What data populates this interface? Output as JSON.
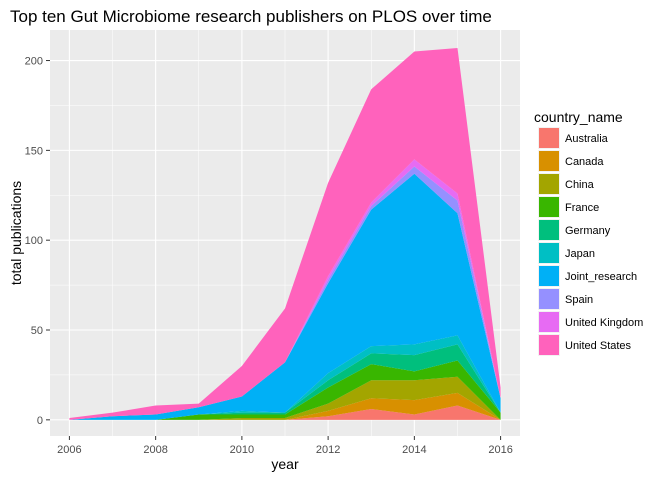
{
  "chart_data": {
    "type": "area",
    "stacked": true,
    "title": "Top ten Gut Microbiome research publishers on PLOS over time",
    "xlabel": "year",
    "ylabel": "total publications",
    "xlim": [
      2005.55,
      2016.45
    ],
    "ylim": [
      -9,
      217
    ],
    "xticks": [
      2006,
      2008,
      2010,
      2012,
      2014,
      2016
    ],
    "yticks": [
      0,
      50,
      100,
      150,
      200
    ],
    "grid": true,
    "legend_title": "country_name",
    "legend_position": "right",
    "x": [
      2006,
      2007,
      2008,
      2009,
      2010,
      2011,
      2012,
      2013,
      2014,
      2015,
      2016
    ],
    "series": [
      {
        "name": "Australia",
        "color": "#F8766D",
        "values": [
          0,
          0,
          0,
          0,
          0,
          0,
          2,
          6,
          3,
          8,
          0
        ]
      },
      {
        "name": "Canada",
        "color": "#D89000",
        "values": [
          0,
          0,
          0,
          0,
          0,
          0,
          3,
          6,
          8,
          7,
          0
        ]
      },
      {
        "name": "China",
        "color": "#A3A500",
        "values": [
          0,
          0,
          0,
          0,
          1,
          1,
          4,
          10,
          11,
          9,
          0
        ]
      },
      {
        "name": "France",
        "color": "#39B600",
        "values": [
          0,
          0,
          0,
          3,
          2,
          2,
          9,
          9,
          5,
          9,
          4
        ]
      },
      {
        "name": "Germany",
        "color": "#00BF7D",
        "values": [
          0,
          0,
          0,
          0,
          1,
          1,
          4,
          6,
          9,
          9,
          0
        ]
      },
      {
        "name": "Japan",
        "color": "#00BFC4",
        "values": [
          0,
          0,
          0,
          0,
          1,
          0,
          4,
          4,
          6,
          5,
          0
        ]
      },
      {
        "name": "Joint_research",
        "color": "#00B0F6",
        "values": [
          0,
          2,
          3,
          4,
          8,
          28,
          50,
          76,
          95,
          68,
          8
        ]
      },
      {
        "name": "Spain",
        "color": "#9590FF",
        "values": [
          0,
          0,
          0,
          0,
          0,
          0,
          2,
          2,
          4,
          7,
          0
        ]
      },
      {
        "name": "United Kingdom",
        "color": "#E76BF3",
        "values": [
          0,
          0,
          0,
          0,
          0,
          0,
          2,
          2,
          4,
          4,
          0
        ]
      },
      {
        "name": "United States",
        "color": "#FF62BC",
        "values": [
          1,
          2,
          5,
          2,
          17,
          30,
          52,
          63,
          60,
          81,
          6
        ]
      }
    ]
  }
}
